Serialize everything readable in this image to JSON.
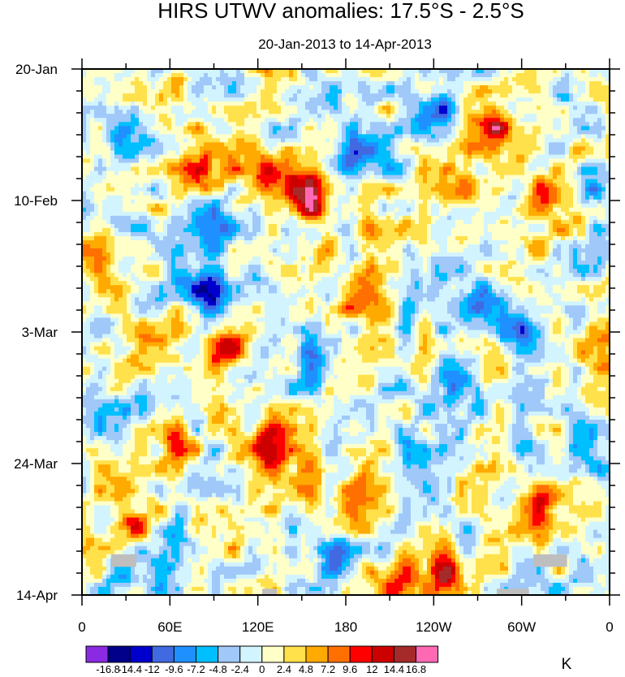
{
  "chart_data": {
    "type": "heatmap",
    "title": "HIRS UTWV anomalies: 17.5°S - 2.5°S",
    "subtitle": "20-Jan-2013 to 14-Apr-2013",
    "x_ticks": [
      {
        "lon": 0,
        "label": "0"
      },
      {
        "lon": 60,
        "label": "60E"
      },
      {
        "lon": 120,
        "label": "120E"
      },
      {
        "lon": 180,
        "label": "180"
      },
      {
        "lon": 240,
        "label": "120W"
      },
      {
        "lon": 300,
        "label": "60W"
      },
      {
        "lon": 360,
        "label": "0"
      }
    ],
    "x_range": [
      0,
      360
    ],
    "y_ticks": [
      {
        "day": 0,
        "label": "20-Jan"
      },
      {
        "day": 21,
        "label": "10-Feb"
      },
      {
        "day": 42,
        "label": "3-Mar"
      },
      {
        "day": 63,
        "label": "24-Mar"
      },
      {
        "day": 84,
        "label": "14-Apr"
      }
    ],
    "y_range_days": [
      0,
      84
    ],
    "colorbar": {
      "levels": [
        "-16.8",
        "-14.4",
        "-12",
        "-9.6",
        "-7.2",
        "-4.8",
        "-2.4",
        "0",
        "2.4",
        "4.8",
        "7.2",
        "9.6",
        "12",
        "14.4",
        "16.8"
      ],
      "colors": [
        "#8a2be2",
        "#00008b",
        "#0000cd",
        "#4169e1",
        "#1e90ff",
        "#00bfff",
        "#a0c8f8",
        "#d2f4ff",
        "#ffffc8",
        "#ffe14b",
        "#ffaa00",
        "#ff7000",
        "#ff0000",
        "#cd0000",
        "#a52a2a",
        "#ff69b4"
      ],
      "unit": "K"
    },
    "highlights": [
      {
        "lon": 82,
        "day": 16,
        "value": 12
      },
      {
        "lon": 122,
        "day": 17,
        "value": 12
      },
      {
        "lon": 155,
        "day": 20,
        "value": 14.4
      },
      {
        "lon": 205,
        "day": 26,
        "value": 7.2
      },
      {
        "lon": 260,
        "day": 20,
        "value": 7.2
      },
      {
        "lon": 280,
        "day": 9,
        "value": 12
      },
      {
        "lon": 320,
        "day": 20,
        "value": 9.6
      },
      {
        "lon": 125,
        "day": 60,
        "value": 12
      },
      {
        "lon": 100,
        "day": 45,
        "value": 9.6
      },
      {
        "lon": 35,
        "day": 72,
        "value": 9.6
      },
      {
        "lon": 315,
        "day": 70,
        "value": 9.6
      },
      {
        "lon": 195,
        "day": 37,
        "value": 9.6
      },
      {
        "lon": 85,
        "day": 35,
        "value": -12
      },
      {
        "lon": 255,
        "day": 50,
        "value": -14.4
      },
      {
        "lon": 90,
        "day": 25,
        "value": -9.6
      },
      {
        "lon": 240,
        "day": 7,
        "value": -9.6
      },
      {
        "lon": 190,
        "day": 14,
        "value": -7.2
      },
      {
        "lon": 35,
        "day": 10,
        "value": -7.2
      },
      {
        "lon": 270,
        "day": 38,
        "value": -9.6
      },
      {
        "lon": 60,
        "day": 77,
        "value": -9.6
      },
      {
        "lon": 155,
        "day": 47,
        "value": -7.2
      },
      {
        "lon": 300,
        "day": 42,
        "value": -7.2
      },
      {
        "lon": 345,
        "day": 20,
        "value": -7.2
      },
      {
        "lon": 215,
        "day": 82,
        "value": 9.6
      },
      {
        "lon": 245,
        "day": 81,
        "value": 12
      },
      {
        "lon": 195,
        "day": 68,
        "value": 7.2
      },
      {
        "lon": 50,
        "day": 43,
        "value": 7.2
      },
      {
        "lon": 350,
        "day": 45,
        "value": 7.2
      },
      {
        "lon": 175,
        "day": 78,
        "value": -7.2
      },
      {
        "lon": 225,
        "day": 60,
        "value": -4.8
      },
      {
        "lon": 340,
        "day": 60,
        "value": -4.8
      },
      {
        "lon": 10,
        "day": 30,
        "value": 4.8
      },
      {
        "lon": 20,
        "day": 55,
        "value": -4.8
      },
      {
        "lon": 65,
        "day": 60,
        "value": 7.2
      },
      {
        "lon": 150,
        "day": 65,
        "value": 4.8
      },
      {
        "lon": 300,
        "day": 28,
        "value": 4.8
      },
      {
        "lon": 130,
        "day": 3,
        "value": 4.8
      },
      {
        "lon": 60,
        "day": 4,
        "value": 4.8
      },
      {
        "lon": 170,
        "day": 4,
        "value": -4.8
      },
      {
        "lon": 330,
        "day": 4,
        "value": -4.8
      },
      {
        "lon": 230,
        "day": 35,
        "value": -4.8
      },
      {
        "lon": 165,
        "day": 32,
        "value": 4.8
      },
      {
        "lon": 100,
        "day": 72,
        "value": 4.8
      },
      {
        "lon": 285,
        "day": 76,
        "value": 7.2
      },
      {
        "lon": 30,
        "day": 80,
        "value": -4.8
      }
    ],
    "missing": [
      {
        "lon": [
          20,
          37
        ],
        "day": [
          77.5,
          79.5
        ]
      },
      {
        "lon": [
          123,
          133
        ],
        "day": [
          83,
          84
        ]
      },
      {
        "lon": [
          283,
          305
        ],
        "day": [
          83,
          84
        ]
      },
      {
        "lon": [
          308,
          331
        ],
        "day": [
          77.5,
          79.5
        ]
      }
    ]
  }
}
